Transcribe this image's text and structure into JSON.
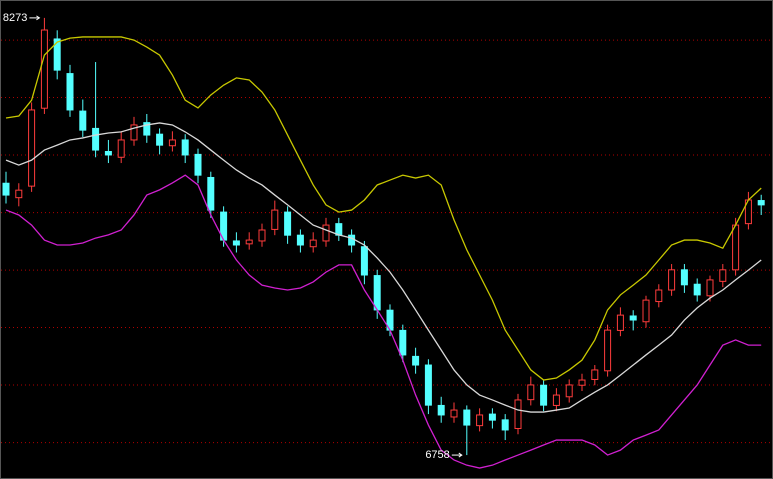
{
  "chart_data": {
    "type": "candlestick",
    "ylim": [
      6682,
      8335
    ],
    "yticks": [
      8196,
      7997,
      7798,
      7598,
      7399,
      7200,
      7001,
      6801
    ],
    "grid": true,
    "grid_color": "#b00000",
    "up_color": "#ff3c3c",
    "down_color": "#54ffff",
    "open": [
      7700,
      7650,
      7690,
      7960,
      8200,
      8080,
      7950,
      7890,
      7810,
      7790,
      7850,
      7910,
      7870,
      7830,
      7850,
      7800,
      7720,
      7600,
      7500,
      7490,
      7500,
      7540,
      7600,
      7520,
      7480,
      7500,
      7560,
      7520,
      7480,
      7380,
      7260,
      7190,
      7100,
      7070,
      6930,
      6890,
      6914,
      6860,
      6900,
      6880,
      6850,
      6950,
      7000,
      6930,
      6960,
      7000,
      7020,
      7050,
      7190,
      7240,
      7220,
      7290,
      7330,
      7400,
      7350,
      7310,
      7360,
      7400,
      7560,
      7640
    ],
    "high": [
      7740,
      7700,
      7980,
      8273,
      8230,
      8110,
      7990,
      8120,
      7850,
      7880,
      7930,
      7940,
      7890,
      7880,
      7870,
      7820,
      7740,
      7620,
      7530,
      7530,
      7560,
      7640,
      7620,
      7540,
      7530,
      7580,
      7580,
      7540,
      7500,
      7400,
      7280,
      7210,
      7130,
      7090,
      6960,
      6940,
      6930,
      6920,
      6920,
      6900,
      6970,
      7030,
      7020,
      6990,
      7020,
      7040,
      7070,
      7210,
      7270,
      7260,
      7310,
      7350,
      7420,
      7420,
      7370,
      7380,
      7420,
      7580,
      7670,
      7660
    ],
    "low": [
      7630,
      7620,
      7670,
      7940,
      8060,
      7930,
      7860,
      7790,
      7770,
      7770,
      7830,
      7840,
      7800,
      7810,
      7770,
      7700,
      7580,
      7480,
      7460,
      7470,
      7480,
      7520,
      7490,
      7460,
      7460,
      7480,
      7500,
      7460,
      7350,
      7230,
      7170,
      7080,
      7040,
      6900,
      6870,
      6870,
      6758,
      6840,
      6850,
      6810,
      6830,
      6930,
      6910,
      6910,
      6940,
      6980,
      7000,
      7030,
      7170,
      7190,
      7200,
      7270,
      7310,
      7320,
      7290,
      7290,
      7340,
      7380,
      7540,
      7590
    ],
    "close": [
      7659,
      7676,
      7954,
      8231,
      8092,
      7954,
      7884,
      7815,
      7798,
      7850,
      7902,
      7867,
      7832,
      7850,
      7798,
      7728,
      7607,
      7503,
      7486,
      7503,
      7538,
      7607,
      7520,
      7486,
      7503,
      7555,
      7520,
      7486,
      7382,
      7261,
      7191,
      7105,
      7070,
      6931,
      6897,
      6914,
      6862,
      6897,
      6879,
      6845,
      6949,
      7001,
      6931,
      6966,
      7001,
      7018,
      7053,
      7191,
      7243,
      7226,
      7295,
      7330,
      7400,
      7348,
      7313,
      7365,
      7400,
      7555,
      7642,
      7625
    ],
    "bands": [
      {
        "color": "#d8d8d8",
        "values": [
          7780,
          7763,
          7780,
          7815,
          7832,
          7850,
          7857,
          7867,
          7874,
          7878,
          7891,
          7902,
          7909,
          7902,
          7878,
          7850,
          7815,
          7780,
          7746,
          7718,
          7694,
          7659,
          7625,
          7590,
          7555,
          7538,
          7521,
          7510,
          7486,
          7441,
          7392,
          7330,
          7261,
          7191,
          7122,
          7053,
          7001,
          6966,
          6949,
          6931,
          6914,
          6907,
          6907,
          6914,
          6921,
          6949,
          6976,
          7001,
          7035,
          7070,
          7105,
          7139,
          7174,
          7226,
          7268,
          7302,
          7330,
          7365,
          7399,
          7434
        ]
      },
      {
        "color": "#c8c800",
        "values": [
          7926,
          7933,
          7988,
          8144,
          8189,
          8203,
          8207,
          8207,
          8207,
          8207,
          8196,
          8172,
          8144,
          8075,
          7988,
          7961,
          8006,
          8040,
          8065,
          8058,
          8016,
          7954,
          7867,
          7780,
          7694,
          7625,
          7600,
          7607,
          7642,
          7694,
          7711,
          7728,
          7718,
          7728,
          7694,
          7573,
          7469,
          7382,
          7295,
          7191,
          7122,
          7053,
          7018,
          7025,
          7053,
          7087,
          7157,
          7261,
          7313,
          7347,
          7382,
          7434,
          7486,
          7503,
          7503,
          7493,
          7475,
          7555,
          7642,
          7683
        ]
      },
      {
        "color": "#d020d0",
        "values": [
          7607,
          7590,
          7555,
          7503,
          7486,
          7486,
          7493,
          7510,
          7521,
          7538,
          7590,
          7659,
          7677,
          7701,
          7728,
          7694,
          7590,
          7503,
          7434,
          7382,
          7347,
          7337,
          7330,
          7337,
          7358,
          7392,
          7417,
          7417,
          7330,
          7261,
          7191,
          7087,
          6966,
          6862,
          6775,
          6741,
          6723,
          6713,
          6723,
          6741,
          6758,
          6775,
          6793,
          6810,
          6810,
          6810,
          6793,
          6758,
          6775,
          6810,
          6827,
          6845,
          6897,
          6949,
          7001,
          7070,
          7139,
          7157,
          7139,
          7139
        ]
      }
    ],
    "annotations": [
      8273,
      6758
    ]
  }
}
